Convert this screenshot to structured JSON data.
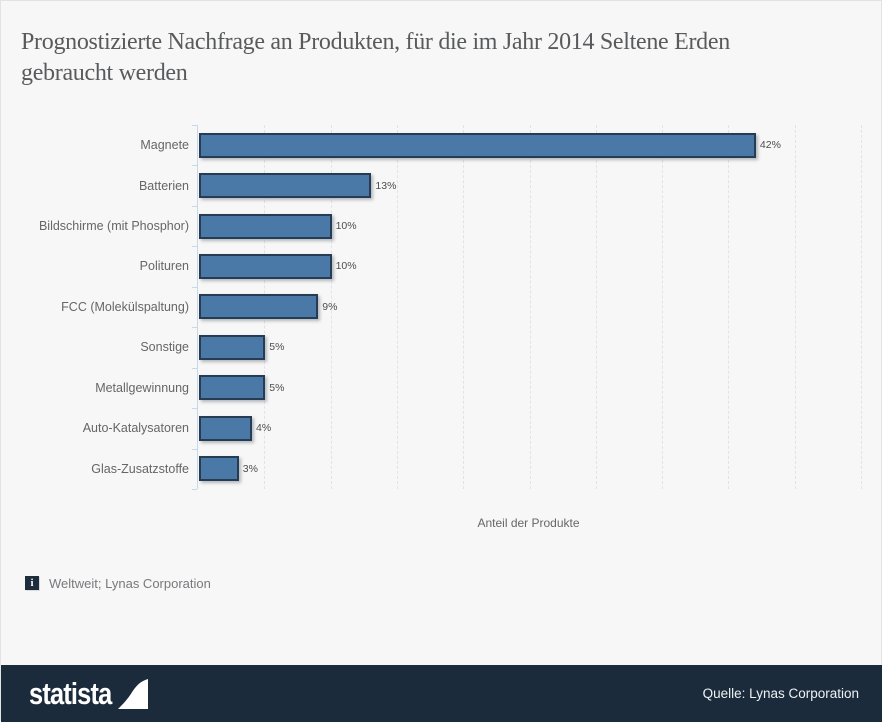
{
  "chart_data": {
    "type": "bar",
    "orientation": "horizontal",
    "title": "Prognostizierte Nachfrage an Produkten, für die im Jahr 2014 Seltene Erden gebraucht werden",
    "categories": [
      "Magnete",
      "Batterien",
      "Bildschirme (mit Phosphor)",
      "Polituren",
      "FCC (Molekülspaltung)",
      "Sonstige",
      "Metallgewinnung",
      "Auto-Katalysatoren",
      "Glas-Zusatzstoffe"
    ],
    "values": [
      42,
      13,
      10,
      10,
      9,
      5,
      5,
      4,
      3
    ],
    "value_labels": [
      "42%",
      "13%",
      "10%",
      "10%",
      "9%",
      "5%",
      "5%",
      "4%",
      "3%"
    ],
    "xlabel": "Anteil der Produkte",
    "ylabel": "",
    "xlim": [
      0,
      50
    ],
    "grid": true,
    "grid_interval": 5,
    "legend": false,
    "bar_color": "#4b79a7",
    "bar_border_color": "#263c52"
  },
  "footnote": {
    "icon_glyph": "i",
    "text": "Weltweit; Lynas Corporation"
  },
  "footer": {
    "brand": "statista",
    "source": "Quelle: Lynas Corporation",
    "bg_color": "#1b2b3c"
  }
}
